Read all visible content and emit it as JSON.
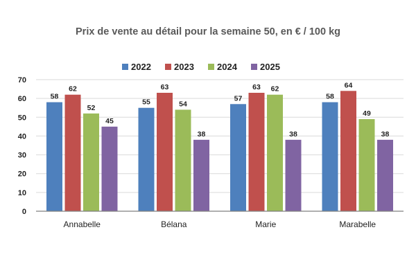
{
  "chart_data": {
    "type": "bar",
    "title": "Prix de vente au détail pour la semaine 50, en € / 100 kg",
    "categories": [
      "Annabelle",
      "Bélana",
      "Marie",
      "Marabelle"
    ],
    "series": [
      {
        "name": "2022",
        "values": [
          58,
          55,
          57,
          58
        ],
        "color": "#4e80bd"
      },
      {
        "name": "2023",
        "values": [
          62,
          63,
          63,
          64
        ],
        "color": "#c0504d"
      },
      {
        "name": "2024",
        "values": [
          52,
          54,
          62,
          49
        ],
        "color": "#9bbb59"
      },
      {
        "name": "2025",
        "values": [
          45,
          38,
          38,
          38
        ],
        "color": "#8064a2"
      }
    ],
    "ylim": [
      0,
      70
    ],
    "yticks": [
      0,
      10,
      20,
      30,
      40,
      50,
      60,
      70
    ],
    "grid": true,
    "legend_position": "top-center",
    "data_labels": true
  }
}
